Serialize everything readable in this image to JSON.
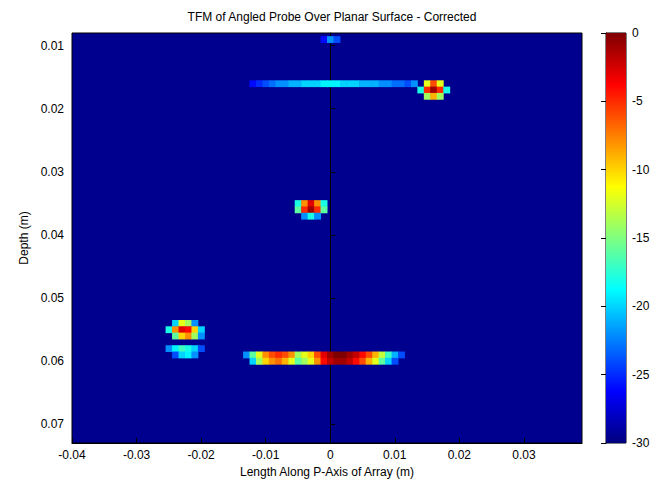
{
  "chart_data": {
    "type": "heatmap",
    "title": "TFM of Angled Probe Over Planar Surface - Corrected",
    "x_label": "Length Along P-Axis of Array (m)",
    "y_label": "Depth (m)",
    "xlim": [
      -0.04,
      0.039
    ],
    "xticks": [
      -0.04,
      -0.03,
      -0.02,
      -0.01,
      0,
      0.01,
      0.02,
      0.03
    ],
    "ylim": [
      0.008,
      0.073
    ],
    "yticks": [
      0.01,
      0.02,
      0.03,
      0.04,
      0.05,
      0.06,
      0.07
    ],
    "grid": false,
    "cell_size": [
      0.001,
      0.001
    ],
    "cells": [
      [
        -0.001,
        0.009,
        -26
      ],
      [
        0,
        0.009,
        -22
      ],
      [
        0.001,
        0.009,
        -24
      ],
      [
        -0.012,
        0.016,
        -26
      ],
      [
        -0.011,
        0.016,
        -25
      ],
      [
        -0.01,
        0.016,
        -24
      ],
      [
        -0.009,
        0.016,
        -23
      ],
      [
        -0.008,
        0.016,
        -22
      ],
      [
        -0.007,
        0.016,
        -22
      ],
      [
        -0.006,
        0.016,
        -21
      ],
      [
        -0.005,
        0.016,
        -21
      ],
      [
        -0.004,
        0.016,
        -20
      ],
      [
        -0.003,
        0.016,
        -20
      ],
      [
        -0.002,
        0.016,
        -20
      ],
      [
        -0.001,
        0.016,
        -19
      ],
      [
        0,
        0.016,
        -19
      ],
      [
        0.001,
        0.016,
        -19
      ],
      [
        0.002,
        0.016,
        -20
      ],
      [
        0.003,
        0.016,
        -20
      ],
      [
        0.004,
        0.016,
        -20
      ],
      [
        0.005,
        0.016,
        -21
      ],
      [
        0.006,
        0.016,
        -21
      ],
      [
        0.007,
        0.016,
        -21
      ],
      [
        0.008,
        0.016,
        -22
      ],
      [
        0.009,
        0.016,
        -22
      ],
      [
        0.01,
        0.016,
        -23
      ],
      [
        0.011,
        0.016,
        -23
      ],
      [
        0.012,
        0.016,
        -24
      ],
      [
        0.013,
        0.016,
        -22
      ],
      [
        0.015,
        0.016,
        -12
      ],
      [
        0.016,
        0.016,
        -6
      ],
      [
        0.017,
        0.016,
        -12
      ],
      [
        0.014,
        0.017,
        -18
      ],
      [
        0.015,
        0.017,
        -5
      ],
      [
        0.016,
        0.017,
        -1
      ],
      [
        0.017,
        0.017,
        -5
      ],
      [
        0.018,
        0.017,
        -18
      ],
      [
        0.015,
        0.018,
        -14
      ],
      [
        0.016,
        0.018,
        -9
      ],
      [
        0.017,
        0.018,
        -14
      ],
      [
        -0.005,
        0.035,
        -18
      ],
      [
        -0.004,
        0.035,
        -8
      ],
      [
        -0.003,
        0.035,
        -3
      ],
      [
        -0.002,
        0.035,
        -8
      ],
      [
        -0.001,
        0.035,
        -18
      ],
      [
        -0.005,
        0.036,
        -16
      ],
      [
        -0.004,
        0.036,
        -5
      ],
      [
        -0.003,
        0.036,
        -1
      ],
      [
        -0.002,
        0.036,
        -5
      ],
      [
        -0.001,
        0.036,
        -16
      ],
      [
        -0.004,
        0.037,
        -22
      ],
      [
        -0.003,
        0.037,
        -18
      ],
      [
        -0.002,
        0.037,
        -22
      ],
      [
        -0.024,
        0.054,
        -20
      ],
      [
        -0.023,
        0.054,
        -12
      ],
      [
        -0.022,
        0.054,
        -14
      ],
      [
        -0.021,
        0.054,
        -22
      ],
      [
        -0.025,
        0.055,
        -18
      ],
      [
        -0.024,
        0.055,
        -8
      ],
      [
        -0.023,
        0.055,
        -3
      ],
      [
        -0.022,
        0.055,
        -4
      ],
      [
        -0.021,
        0.055,
        -10
      ],
      [
        -0.02,
        0.055,
        -20
      ],
      [
        -0.024,
        0.056,
        -16
      ],
      [
        -0.023,
        0.056,
        -10
      ],
      [
        -0.022,
        0.056,
        -8
      ],
      [
        -0.021,
        0.056,
        -14
      ],
      [
        -0.02,
        0.056,
        -22
      ],
      [
        -0.025,
        0.058,
        -22
      ],
      [
        -0.024,
        0.058,
        -19
      ],
      [
        -0.023,
        0.058,
        -17
      ],
      [
        -0.022,
        0.058,
        -18
      ],
      [
        -0.021,
        0.058,
        -20
      ],
      [
        -0.02,
        0.058,
        -24
      ],
      [
        -0.024,
        0.059,
        -24
      ],
      [
        -0.023,
        0.059,
        -20
      ],
      [
        -0.022,
        0.059,
        -19
      ],
      [
        -0.021,
        0.059,
        -22
      ],
      [
        -0.013,
        0.059,
        -22
      ],
      [
        -0.012,
        0.059,
        -16
      ],
      [
        -0.011,
        0.059,
        -12
      ],
      [
        -0.01,
        0.059,
        -8
      ],
      [
        -0.009,
        0.059,
        -6
      ],
      [
        -0.008,
        0.059,
        -5
      ],
      [
        -0.007,
        0.059,
        -6
      ],
      [
        -0.006,
        0.059,
        -8
      ],
      [
        -0.005,
        0.059,
        -14
      ],
      [
        -0.004,
        0.059,
        -12
      ],
      [
        -0.003,
        0.059,
        -10
      ],
      [
        -0.002,
        0.059,
        -6
      ],
      [
        -0.001,
        0.059,
        -3
      ],
      [
        0,
        0.059,
        -1
      ],
      [
        0.001,
        0.059,
        0
      ],
      [
        0.002,
        0.059,
        0
      ],
      [
        0.003,
        0.059,
        -1
      ],
      [
        0.004,
        0.059,
        -2
      ],
      [
        0.005,
        0.059,
        -4
      ],
      [
        0.006,
        0.059,
        -6
      ],
      [
        0.007,
        0.059,
        -9
      ],
      [
        0.008,
        0.059,
        -13
      ],
      [
        0.009,
        0.059,
        -17
      ],
      [
        0.01,
        0.059,
        -21
      ],
      [
        0.011,
        0.059,
        -24
      ],
      [
        -0.012,
        0.06,
        -20
      ],
      [
        -0.011,
        0.06,
        -14
      ],
      [
        -0.01,
        0.06,
        -10
      ],
      [
        -0.009,
        0.06,
        -8
      ],
      [
        -0.008,
        0.06,
        -7
      ],
      [
        -0.007,
        0.06,
        -9
      ],
      [
        -0.006,
        0.06,
        -12
      ],
      [
        -0.005,
        0.06,
        -16
      ],
      [
        -0.004,
        0.06,
        -14
      ],
      [
        -0.003,
        0.06,
        -12
      ],
      [
        -0.002,
        0.06,
        -8
      ],
      [
        -0.001,
        0.06,
        -4
      ],
      [
        0,
        0.06,
        -2
      ],
      [
        0.001,
        0.06,
        -1
      ],
      [
        0.002,
        0.06,
        -1
      ],
      [
        0.003,
        0.06,
        -2
      ],
      [
        0.004,
        0.06,
        -4
      ],
      [
        0.005,
        0.06,
        -6
      ],
      [
        0.006,
        0.06,
        -9
      ],
      [
        0.007,
        0.06,
        -12
      ],
      [
        0.008,
        0.06,
        -16
      ],
      [
        0.009,
        0.06,
        -20
      ],
      [
        0.01,
        0.06,
        -24
      ]
    ],
    "colorbar_lim": [
      -30,
      0
    ],
    "colorbar_ticks": [
      0,
      -5,
      -10,
      -15,
      -20,
      -25,
      -30
    ]
  }
}
